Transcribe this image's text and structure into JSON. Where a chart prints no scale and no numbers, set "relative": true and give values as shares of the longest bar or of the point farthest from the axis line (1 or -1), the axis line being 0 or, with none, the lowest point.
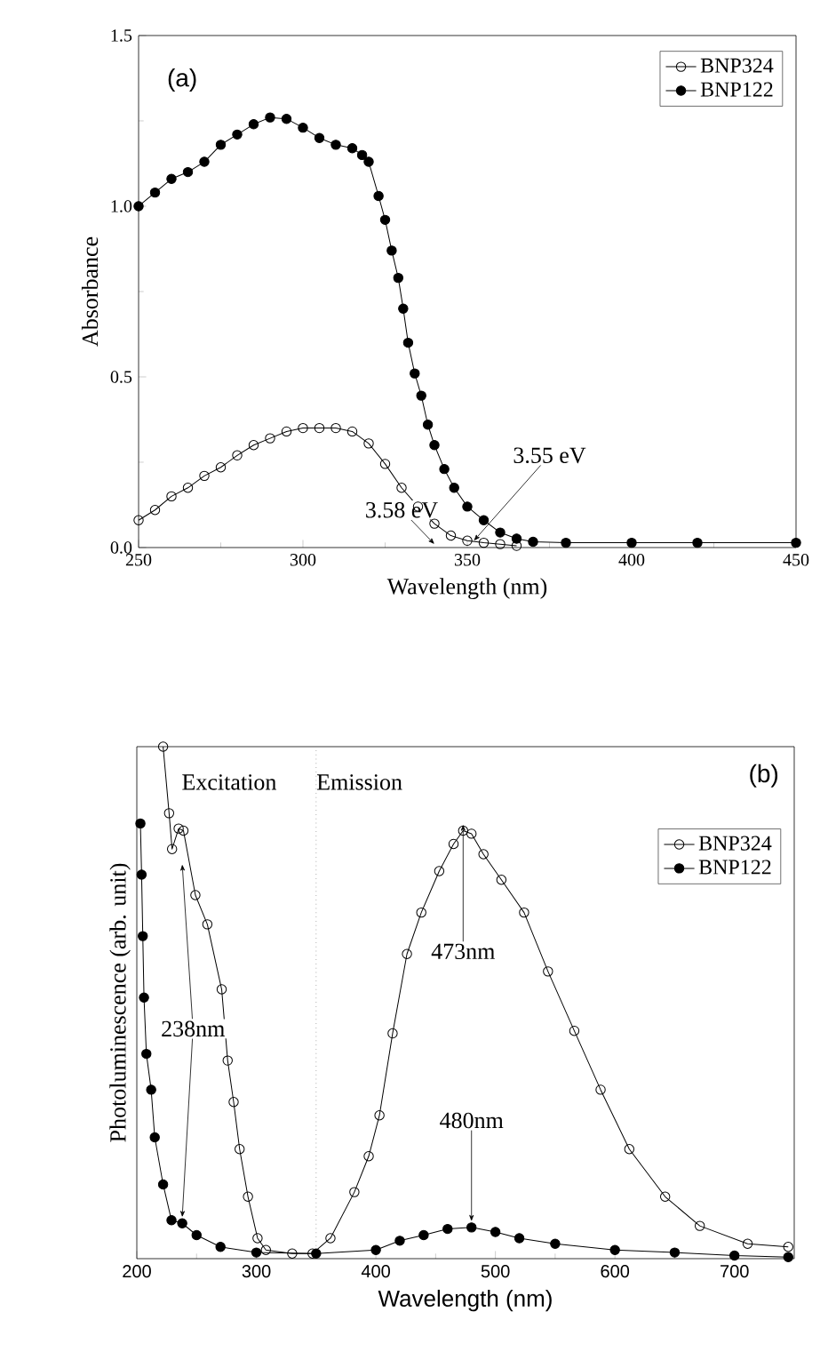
{
  "chart_data": [
    {
      "type": "line",
      "xlabel": "Wavelength (nm)",
      "ylabel": "Absorbance",
      "xlim": [
        250,
        450
      ],
      "xticks": [
        250,
        300,
        350,
        400,
        450
      ],
      "ylim": [
        0,
        1.5
      ],
      "yticks": [
        {
          "value": 0,
          "label": "0.0"
        },
        {
          "value": 0.5,
          "label": "0.5"
        },
        {
          "value": 1,
          "label": "1.0"
        },
        {
          "value": 1.5,
          "label": "1.5"
        }
      ],
      "legend": "top right",
      "marker": "circle",
      "line_style": "solid",
      "annotations": [
        "(a)",
        {
          "text": "3.58 eV",
          "x": 340,
          "y": 0.01
        },
        {
          "text": "3.55 eV",
          "x": 352,
          "y": 0.02
        }
      ],
      "series": [
        {
          "name": "BNP324",
          "color": "#000000",
          "x": [
            250,
            255,
            260,
            265,
            270,
            275,
            280,
            285,
            290,
            295,
            300,
            305,
            310,
            315,
            320,
            325,
            330,
            335,
            340,
            345,
            350,
            355,
            360,
            365
          ],
          "values": [
            0.08,
            0.11,
            0.15,
            0.175,
            0.21,
            0.235,
            0.27,
            0.3,
            0.32,
            0.34,
            0.35,
            0.35,
            0.35,
            0.34,
            0.305,
            0.245,
            0.175,
            0.12,
            0.07,
            0.035,
            0.02,
            0.014,
            0.01,
            0.005
          ]
        },
        {
          "name": "BNP122",
          "color": "#000000",
          "x": [
            250,
            255,
            260,
            265,
            270,
            275,
            280,
            285,
            290,
            295,
            300,
            305,
            310,
            315,
            318,
            320,
            323,
            325,
            327,
            329,
            330.5,
            332,
            334,
            336,
            338,
            340,
            343,
            346,
            350,
            355,
            360,
            365,
            370,
            380,
            400,
            420,
            450
          ],
          "values": [
            1.0,
            1.04,
            1.08,
            1.1,
            1.13,
            1.18,
            1.21,
            1.24,
            1.26,
            1.256,
            1.23,
            1.2,
            1.18,
            1.17,
            1.15,
            1.13,
            1.03,
            0.96,
            0.87,
            0.79,
            0.7,
            0.6,
            0.51,
            0.445,
            0.36,
            0.3,
            0.23,
            0.175,
            0.12,
            0.08,
            0.044,
            0.026,
            0.017,
            0.014,
            0.014,
            0.014,
            0.014
          ]
        }
      ]
    },
    {
      "type": "line",
      "relative": true,
      "xlabel": "Wavelength (nm)",
      "ylabel": "Photoluminescence (arb. unit)",
      "xlim": [
        200,
        750
      ],
      "xticks": [
        200,
        300,
        400,
        500,
        600,
        700
      ],
      "legend": "top right",
      "marker": "circle",
      "line_style": "solid",
      "ref_lines": [
        {
          "axis": "x",
          "value": 350,
          "line_style": "dotted"
        }
      ],
      "annotations": [
        "(b)",
        "Excitation",
        "Emission",
        {
          "text": "238nm",
          "x": 238,
          "y": 0.069
        },
        {
          "text": "473nm",
          "x": 473,
          "y": 0.836
        },
        {
          "text": "480nm",
          "x": 480,
          "y": 0.061
        }
      ],
      "series": [
        {
          "name": "BNP324",
          "color": "#000000",
          "x": [
            222,
            227,
            229.5,
            235,
            239,
            249,
            259,
            271,
            276,
            281,
            286,
            293,
            301,
            308,
            330,
            347,
            362,
            382,
            394,
            403,
            414,
            426,
            438,
            453,
            465,
            473,
            480,
            490,
            505,
            524,
            544,
            566,
            588,
            612,
            642,
            671,
            711,
            745
          ],
          "values": [
            1.0,
            0.87,
            0.8,
            0.84,
            0.836,
            0.71,
            0.653,
            0.526,
            0.387,
            0.306,
            0.214,
            0.121,
            0.04,
            0.017,
            0.01,
            0.01,
            0.04,
            0.13,
            0.2,
            0.28,
            0.44,
            0.595,
            0.676,
            0.757,
            0.81,
            0.836,
            0.83,
            0.79,
            0.74,
            0.676,
            0.561,
            0.445,
            0.33,
            0.214,
            0.121,
            0.064,
            0.029,
            0.023
          ]
        },
        {
          "name": "BNP122",
          "color": "#000000",
          "x": [
            203,
            204,
            205,
            206,
            208,
            212,
            215,
            222,
            229,
            238,
            250,
            270,
            300,
            350,
            400,
            420,
            440,
            460,
            480,
            500,
            520,
            550,
            600,
            650,
            700,
            745
          ],
          "values": [
            0.85,
            0.75,
            0.63,
            0.51,
            0.4,
            0.33,
            0.237,
            0.145,
            0.075,
            0.069,
            0.046,
            0.023,
            0.012,
            0.01,
            0.017,
            0.035,
            0.046,
            0.058,
            0.061,
            0.052,
            0.04,
            0.029,
            0.017,
            0.012,
            0.006,
            0.003
          ]
        }
      ]
    }
  ]
}
